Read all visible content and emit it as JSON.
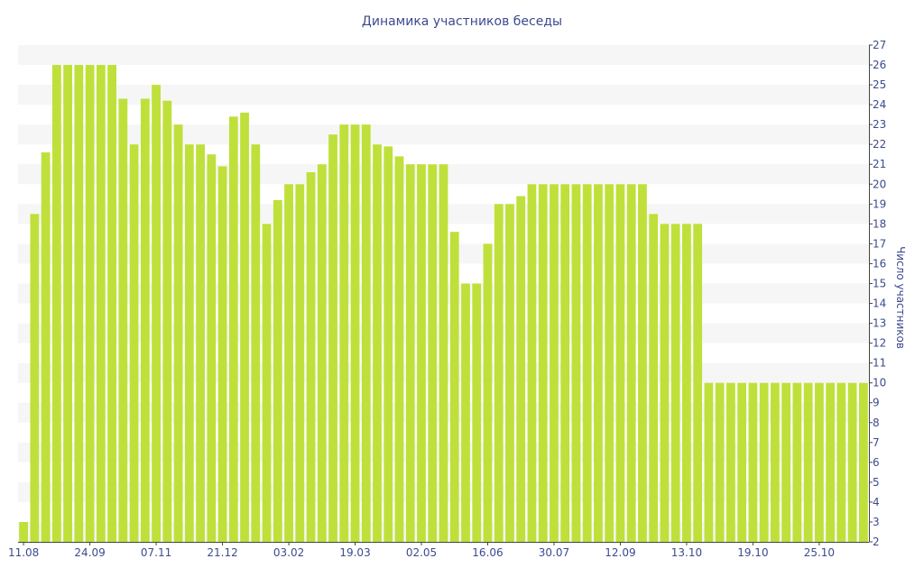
{
  "chart_data": {
    "type": "bar",
    "title": "Динамика участников беседы",
    "xlabel": "",
    "ylabel": "Число участников",
    "ylim": [
      2,
      27
    ],
    "y_ticks": [
      2,
      3,
      4,
      5,
      6,
      7,
      8,
      9,
      10,
      11,
      12,
      13,
      14,
      15,
      16,
      17,
      18,
      19,
      20,
      21,
      22,
      23,
      24,
      25,
      26,
      27
    ],
    "y_axis_position": "right",
    "grid": "horizontal bands",
    "x_tick_labels": [
      "11.08",
      "24.09",
      "07.11",
      "21.12",
      "03.02",
      "19.03",
      "02.05",
      "16.06",
      "30.07",
      "12.09",
      "13.10",
      "19.10",
      "25.10"
    ],
    "x_tick_bar_indices": [
      0,
      6,
      12,
      18,
      24,
      30,
      36,
      42,
      48,
      54,
      60,
      66,
      72
    ],
    "values": [
      3,
      18.5,
      21.6,
      26,
      26,
      26,
      26,
      26,
      26,
      24.3,
      22,
      24.3,
      25,
      24.2,
      23,
      22,
      22,
      21.5,
      20.9,
      23.4,
      23.6,
      22,
      18,
      19.2,
      20,
      20,
      20.6,
      21,
      22.5,
      23,
      23,
      23,
      22,
      21.9,
      21.4,
      21,
      21,
      21,
      21,
      17.6,
      15,
      15,
      17,
      19,
      19,
      19.4,
      20,
      20,
      20,
      20,
      20,
      20,
      20,
      20,
      20,
      20,
      20,
      18.5,
      18,
      18,
      18,
      18,
      10,
      10,
      10,
      10,
      10,
      10,
      10,
      10,
      10,
      10,
      10,
      10,
      10,
      10,
      10
    ],
    "colors": {
      "bar": "#bfe03a",
      "band": "#f6f6f6",
      "text": "#3d4a8f",
      "axis": "#444444"
    }
  }
}
